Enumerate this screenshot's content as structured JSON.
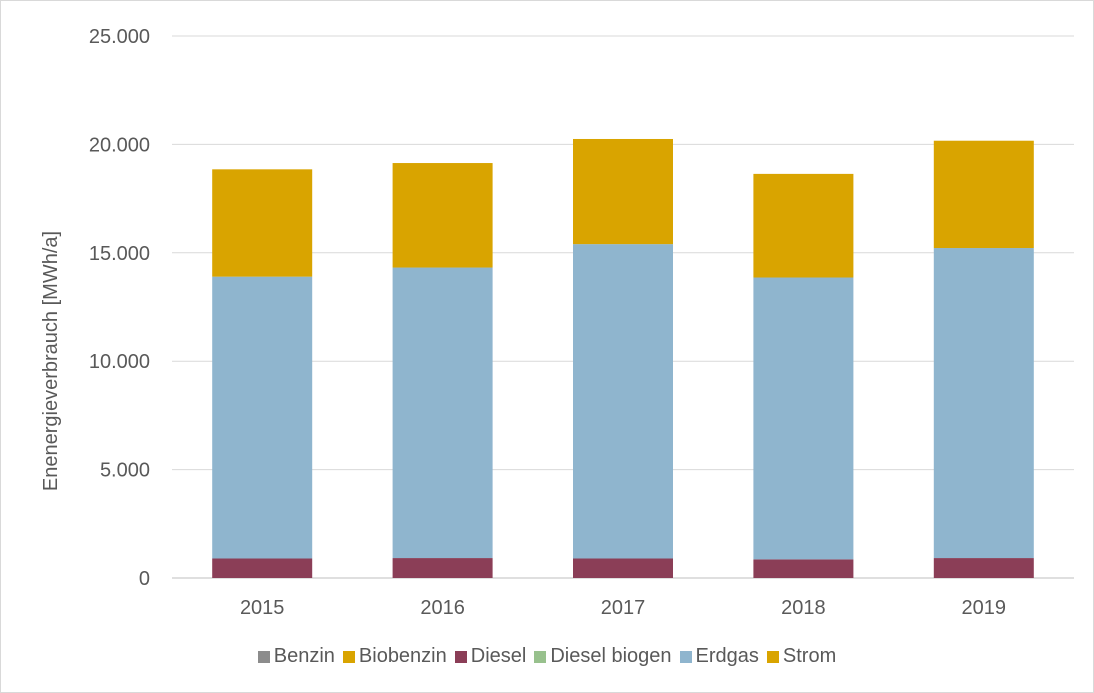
{
  "chart_data": {
    "type": "bar",
    "stacked": true,
    "categories": [
      "2015",
      "2016",
      "2017",
      "2018",
      "2019"
    ],
    "ylabel": "Enenergieverbrauch [MWh/a]",
    "ylim": [
      0,
      25000
    ],
    "yticks": [
      0,
      5000,
      10000,
      15000,
      20000,
      25000
    ],
    "ytick_labels": [
      "0",
      "5.000",
      "10.000",
      "15.000",
      "20.000",
      "25.000"
    ],
    "grid": true,
    "legend_position": "bottom",
    "series": [
      {
        "name": "Benzin",
        "color": "#8c8c8c",
        "values": [
          0,
          0,
          0,
          0,
          0
        ]
      },
      {
        "name": "Biobenzin",
        "color": "#d9a400",
        "values": [
          0,
          0,
          0,
          0,
          0
        ]
      },
      {
        "name": "Diesel",
        "color": "#8b3e57",
        "values": [
          900,
          920,
          900,
          860,
          920
        ]
      },
      {
        "name": "Diesel biogen",
        "color": "#98c18d",
        "values": [
          0,
          0,
          0,
          0,
          0
        ]
      },
      {
        "name": "Erdgas",
        "color": "#8fb5ce",
        "values": [
          13000,
          13400,
          14500,
          13000,
          14300
        ]
      },
      {
        "name": "Strom",
        "color": "#d9a400",
        "values": [
          4950,
          4820,
          4850,
          4780,
          4950
        ]
      }
    ]
  }
}
